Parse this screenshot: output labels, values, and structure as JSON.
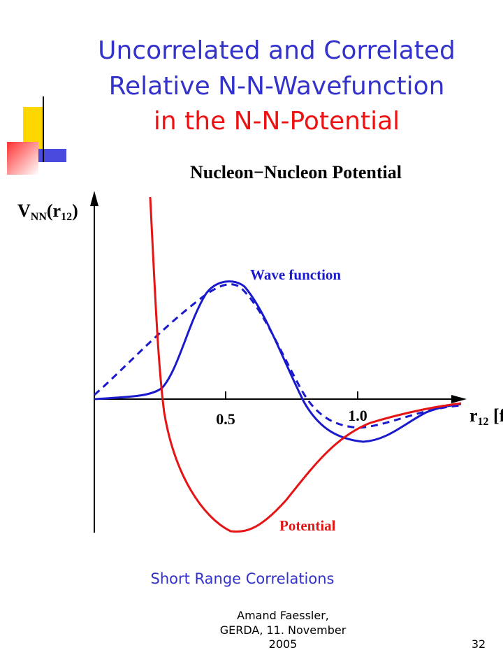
{
  "slide": {
    "title": [
      "Uncorrelated and Correlated",
      "Relative N-N-Wavefunction",
      "in the N-N-Potential"
    ],
    "figure": {
      "title": "Nucleon−Nucleon Potential",
      "y_axis_label": [
        "V",
        "NN",
        "(r",
        "12",
        ")"
      ],
      "x_axis_label": [
        "r",
        "12",
        " [f"
      ],
      "x_tick_labels": [
        "0.5",
        "1.0"
      ],
      "wave_label": "Wave function",
      "potential_label": "Potential"
    },
    "caption": "Short Range Correlations",
    "footer": [
      "Amand Faessler,",
      "GERDA, 11. November",
      "2005"
    ],
    "page_number": "32"
  }
}
